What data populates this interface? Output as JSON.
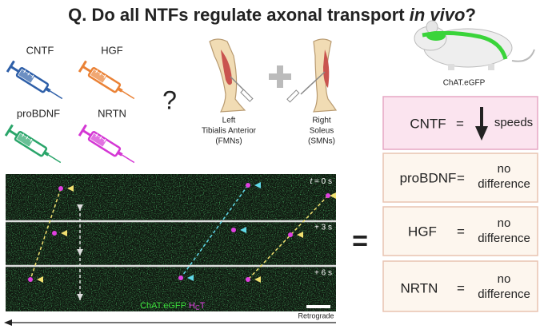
{
  "title": {
    "text": "Q. Do all NTFs regulate axonal transport ",
    "italic": "in vivo",
    "end": "?"
  },
  "treatments": [
    "CNTF",
    "HGF",
    "proBDNF",
    "NRTN"
  ],
  "question_mark": "?",
  "muscles": [
    {
      "side": "Left",
      "name": "Tibialis Anterior",
      "type": "(FMNs)"
    },
    {
      "side": "Right",
      "name": "Soleus",
      "type": "(SMNs)"
    }
  ],
  "mouse_label": "ChAT.eGFP",
  "results": [
    {
      "factor": "CNTF",
      "sign": "=",
      "effect": [
        "speeds"
      ]
    },
    {
      "factor": "proBDNF",
      "sign": "=",
      "effect": [
        "no",
        "difference"
      ]
    },
    {
      "factor": "HGF",
      "sign": "=",
      "effect": [
        "no",
        "difference"
      ]
    },
    {
      "factor": "NRTN",
      "sign": "=",
      "effect": [
        "no",
        "difference"
      ]
    }
  ],
  "microscopy": {
    "time_symbol": "t",
    "timepoints": [
      " = 0 s",
      "+ 3 s",
      "+ 6 s"
    ],
    "marker_1": "ChAT.eGFP",
    "marker_2": {
      "main": "H",
      "sub": "C",
      "end": "T"
    },
    "direction": "Retrograde"
  },
  "equals": "="
}
